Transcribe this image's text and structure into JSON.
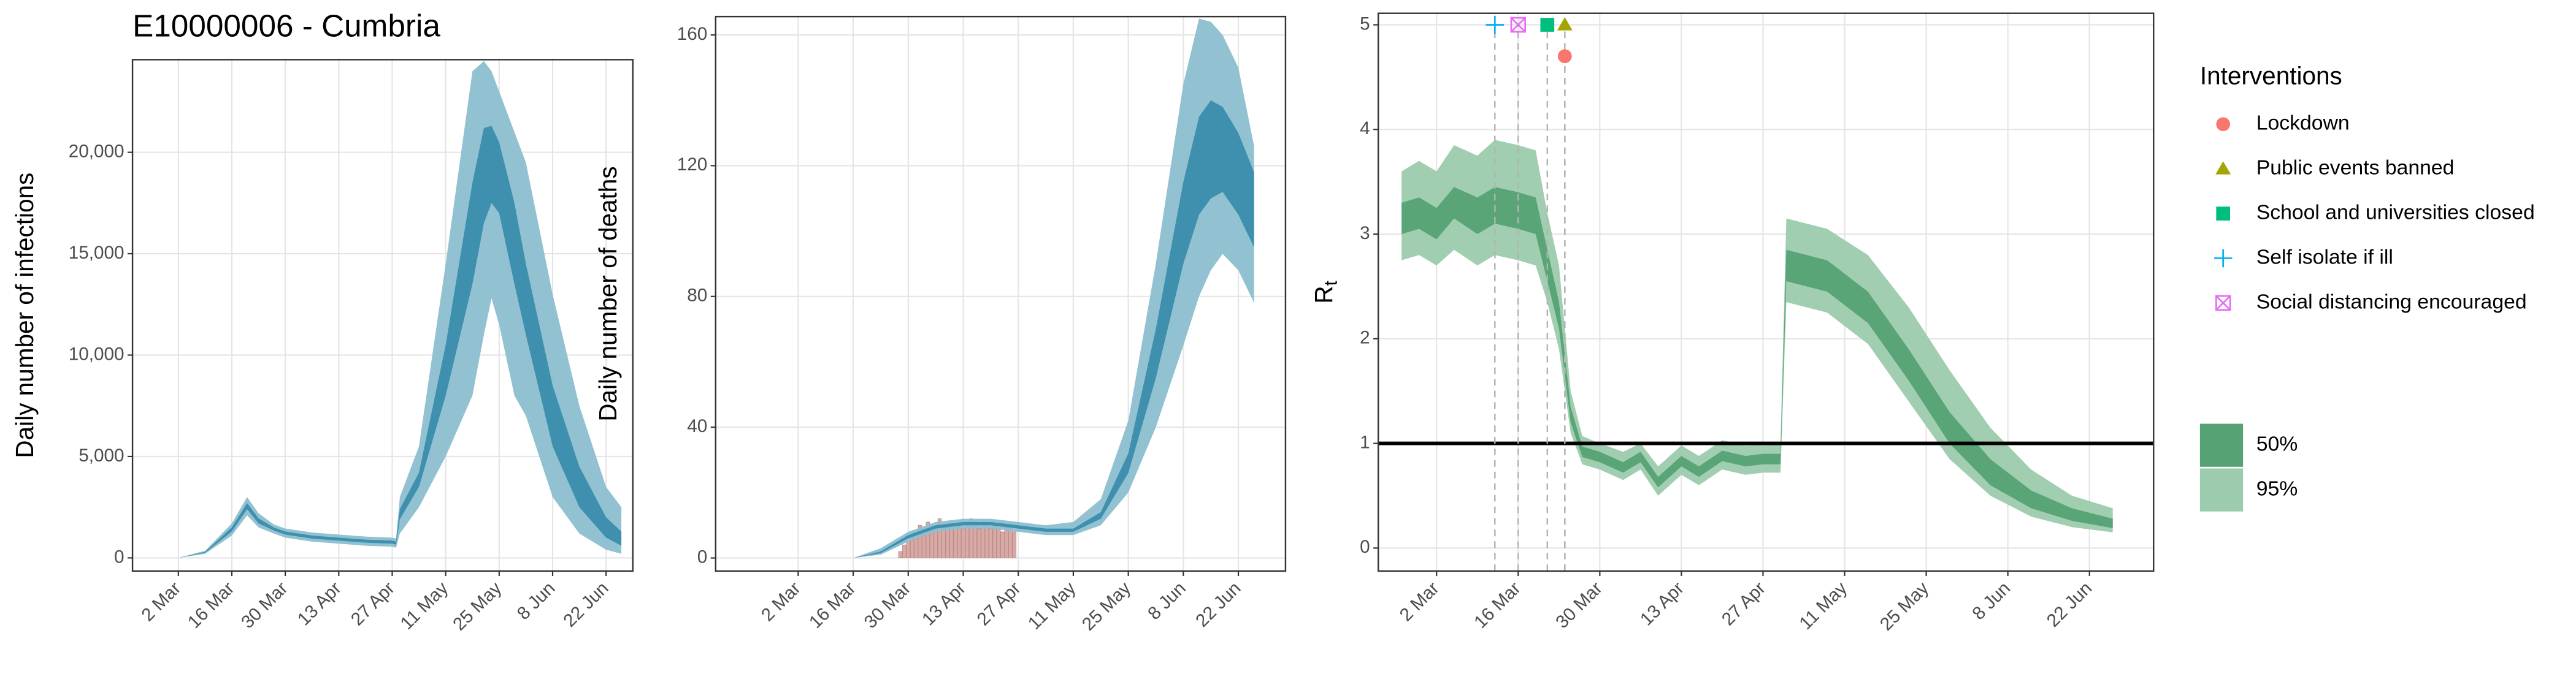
{
  "chart_data": [
    {
      "type": "area_band",
      "title": "E10000006 - Cumbria",
      "ylabel": "Daily number of infections",
      "x": [
        "24 Feb",
        "2 Mar",
        "9 Mar",
        "16 Mar",
        "20 Mar",
        "23 Mar",
        "27 Mar",
        "30 Mar",
        "6 Apr",
        "13 Apr",
        "20 Apr",
        "27 Apr",
        "28 Apr",
        "29 Apr",
        "4 May",
        "11 May",
        "18 May",
        "21 May",
        "23 May",
        "25 May",
        "29 May",
        "1 Jun",
        "8 Jun",
        "15 Jun",
        "22 Jun",
        "26 Jun"
      ],
      "series": [
        {
          "color": "#8cbfd0",
          "low": [
            0,
            0,
            200,
            1100,
            2100,
            1500,
            1200,
            1000,
            800,
            700,
            600,
            550,
            500,
            1200,
            2500,
            5000,
            8000,
            11000,
            12800,
            11500,
            8000,
            7000,
            3000,
            1200,
            400,
            200
          ],
          "high": [
            0,
            0,
            350,
            1700,
            3000,
            2200,
            1650,
            1450,
            1250,
            1150,
            1050,
            1000,
            950,
            3000,
            5500,
            14500,
            24000,
            24500,
            24000,
            23000,
            21000,
            19500,
            13000,
            7500,
            3500,
            2500
          ]
        },
        {
          "color": "#3a8dac",
          "low": [
            0,
            0,
            250,
            1300,
            2400,
            1700,
            1350,
            1150,
            950,
            850,
            750,
            700,
            650,
            1900,
            3500,
            8000,
            13500,
            16500,
            17500,
            17000,
            13500,
            11000,
            5500,
            2500,
            1000,
            600
          ],
          "high": [
            0,
            0,
            300,
            1500,
            2700,
            1950,
            1500,
            1300,
            1100,
            1000,
            900,
            850,
            800,
            2400,
            4200,
            10500,
            18500,
            21200,
            21300,
            20500,
            17500,
            14500,
            8500,
            4500,
            2000,
            1300
          ]
        }
      ],
      "xlim": [
        "19 Feb",
        "29 Jun"
      ],
      "ylim": [
        -650,
        24570
      ],
      "xticks": [
        "2 Mar",
        "16 Mar",
        "30 Mar",
        "13 Apr",
        "27 Apr",
        "11 May",
        "25 May",
        "8 Jun",
        "22 Jun"
      ],
      "yticks": [
        0,
        {
          "value": 5000,
          "label": "5,000"
        },
        {
          "value": 10000,
          "label": "10,000"
        },
        {
          "value": 15000,
          "label": "15,000"
        },
        {
          "value": 20000,
          "label": "20,000"
        }
      ],
      "grid": true
    },
    {
      "type": "area_band",
      "ylabel": "Daily number of deaths",
      "x": [
        "16 Mar",
        "23 Mar",
        "30 Mar",
        "6 Apr",
        "13 Apr",
        "20 Apr",
        "27 Apr",
        "4 May",
        "11 May",
        "18 May",
        "25 May",
        "1 Jun",
        "8 Jun",
        "12 Jun",
        "15 Jun",
        "18 Jun",
        "22 Jun",
        "26 Jun"
      ],
      "series": [
        {
          "color": "#8cbfd0",
          "low": [
            0,
            1,
            5,
            8,
            9,
            9,
            8,
            7,
            7,
            10,
            20,
            40,
            65,
            80,
            88,
            93,
            88,
            78
          ],
          "high": [
            0,
            3,
            8,
            11,
            12,
            12,
            11,
            10,
            11,
            18,
            42,
            90,
            145,
            165,
            164,
            160,
            150,
            126
          ]
        },
        {
          "color": "#3a8dac",
          "low": [
            0,
            1.5,
            6,
            9,
            10,
            10,
            9,
            8,
            8,
            12,
            26,
            55,
            90,
            105,
            110,
            112,
            105,
            95
          ],
          "high": [
            0,
            2,
            7,
            10,
            11,
            11,
            10,
            9,
            9,
            14,
            32,
            70,
            115,
            135,
            140,
            138,
            130,
            118
          ]
        }
      ],
      "bars": {
        "color": "#d9a9a5",
        "x": [
          "28 Mar",
          "29 Mar",
          "30 Mar",
          "31 Mar",
          "1 Apr",
          "2 Apr",
          "3 Apr",
          "4 Apr",
          "5 Apr",
          "6 Apr",
          "7 Apr",
          "8 Apr",
          "9 Apr",
          "10 Apr",
          "11 Apr",
          "12 Apr",
          "13 Apr",
          "14 Apr",
          "15 Apr",
          "16 Apr",
          "17 Apr",
          "18 Apr",
          "19 Apr",
          "20 Apr",
          "21 Apr",
          "22 Apr",
          "23 Apr",
          "24 Apr",
          "25 Apr",
          "26 Apr"
        ],
        "values": [
          2,
          4,
          5,
          7,
          8,
          10,
          9,
          11,
          10,
          10,
          12,
          9,
          11,
          10,
          10,
          11,
          9,
          10,
          12,
          10,
          9,
          11,
          10,
          9,
          10,
          9,
          8,
          10,
          9,
          8
        ]
      },
      "xlim": [
        "10 Feb",
        "4 Jul"
      ],
      "ylim": [
        -4,
        165.6
      ],
      "xticks": [
        "2 Mar",
        "16 Mar",
        "30 Mar",
        "13 Apr",
        "27 Apr",
        "11 May",
        "25 May",
        "8 Jun",
        "22 Jun"
      ],
      "yticks": [
        0,
        40,
        80,
        120,
        160
      ],
      "grid": true
    },
    {
      "type": "area_band",
      "ylabel": "R",
      "ylabel_subscript": "t",
      "x": [
        "25 Feb",
        "28 Feb",
        "2 Mar",
        "5 Mar",
        "9 Mar",
        "12 Mar",
        "16 Mar",
        "19 Mar",
        "21 Mar",
        "23 Mar",
        "25 Mar",
        "27 Mar",
        "30 Mar",
        "3 Apr",
        "6 Apr",
        "9 Apr",
        "13 Apr",
        "16 Apr",
        "20 Apr",
        "24 Apr",
        "27 Apr",
        "30 Apr",
        "1 May",
        "8 May",
        "15 May",
        "22 May",
        "29 May",
        "5 Jun",
        "12 Jun",
        "19 Jun",
        "26 Jun"
      ],
      "series": [
        {
          "name": "95%",
          "color": "#9ccbad",
          "low": [
            2.75,
            2.8,
            2.7,
            2.85,
            2.7,
            2.8,
            2.75,
            2.7,
            2.35,
            1.9,
            1.1,
            0.8,
            0.75,
            0.65,
            0.75,
            0.5,
            0.7,
            0.6,
            0.75,
            0.7,
            0.72,
            0.72,
            2.35,
            2.25,
            1.95,
            1.4,
            0.85,
            0.5,
            0.3,
            0.2,
            0.15
          ],
          "high": [
            3.6,
            3.7,
            3.6,
            3.85,
            3.75,
            3.9,
            3.85,
            3.8,
            3.2,
            2.7,
            1.5,
            1.07,
            1.0,
            0.92,
            1.0,
            0.78,
            0.98,
            0.88,
            1.03,
            0.98,
            1.0,
            1.0,
            3.15,
            3.05,
            2.8,
            2.3,
            1.7,
            1.15,
            0.75,
            0.5,
            0.38
          ]
        },
        {
          "name": "50%",
          "color": "#55a274",
          "low": [
            3.0,
            3.05,
            2.95,
            3.15,
            3.0,
            3.1,
            3.05,
            3.0,
            2.55,
            2.1,
            1.2,
            0.87,
            0.82,
            0.72,
            0.82,
            0.58,
            0.78,
            0.68,
            0.83,
            0.78,
            0.8,
            0.8,
            2.55,
            2.45,
            2.15,
            1.6,
            1.0,
            0.6,
            0.38,
            0.26,
            0.19
          ],
          "high": [
            3.3,
            3.35,
            3.25,
            3.45,
            3.35,
            3.45,
            3.4,
            3.35,
            2.85,
            2.35,
            1.35,
            0.97,
            0.92,
            0.82,
            0.92,
            0.68,
            0.88,
            0.78,
            0.93,
            0.88,
            0.9,
            0.9,
            2.85,
            2.75,
            2.45,
            1.9,
            1.3,
            0.85,
            0.55,
            0.38,
            0.28
          ]
        }
      ],
      "hline": 1,
      "interventions": {
        "title": "Interventions",
        "items": [
          {
            "name": "Lockdown",
            "date": "24 Mar",
            "y": 4.7,
            "color": "#f8766d",
            "shape": "circle"
          },
          {
            "name": "Public events banned",
            "date": "24 Mar",
            "y": 5,
            "color": "#a3a500",
            "shape": "triangle"
          },
          {
            "name": "School and universities closed",
            "date": "21 Mar",
            "y": 5,
            "color": "#00bf7d",
            "shape": "square"
          },
          {
            "name": "Self isolate if ill",
            "date": "12 Mar",
            "y": 5,
            "color": "#00b0f6",
            "shape": "plus"
          },
          {
            "name": "Social distancing encouraged",
            "date": "16 Mar",
            "y": 5,
            "color": "#e76bf3",
            "shape": "square-cross"
          }
        ]
      },
      "xlim": [
        "21 Feb",
        "3 Jul"
      ],
      "ylim": [
        -0.22,
        5.11
      ],
      "xticks": [
        "2 Mar",
        "16 Mar",
        "30 Mar",
        "13 Apr",
        "27 Apr",
        "11 May",
        "25 May",
        "8 Jun",
        "22 Jun"
      ],
      "yticks": [
        0,
        1,
        2,
        3,
        4,
        5
      ],
      "grid": true
    }
  ]
}
